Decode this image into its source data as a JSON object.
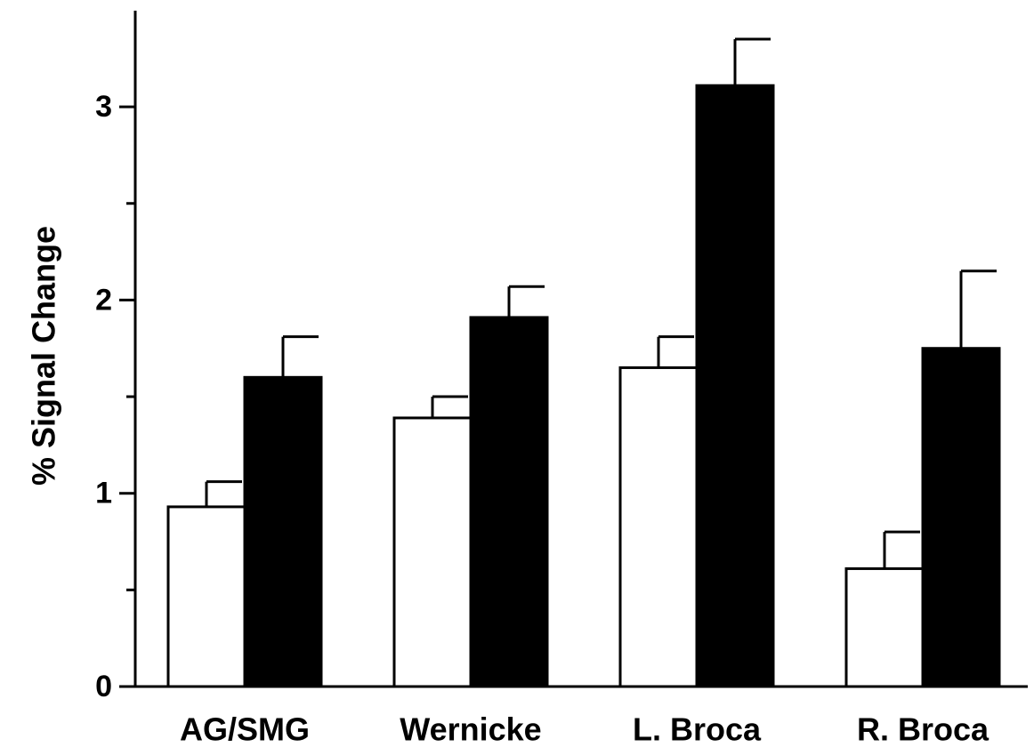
{
  "chart_data": {
    "type": "bar",
    "title": "",
    "xlabel": "",
    "ylabel": "% Signal Change",
    "ylim": [
      0,
      3.5
    ],
    "yticks": [
      0,
      1,
      2,
      3
    ],
    "yticks_minor": [
      0.5,
      1.5,
      2.5
    ],
    "grid": false,
    "legend": "none",
    "categories": [
      "AG/SMG",
      "Wernicke",
      "L. Broca",
      "R. Broca"
    ],
    "series": [
      {
        "color": "#ffffff",
        "values": [
          0.93,
          1.39,
          1.65,
          0.61
        ],
        "error": [
          0.13,
          0.11,
          0.16,
          0.19
        ]
      },
      {
        "color": "#000000",
        "values": [
          1.6,
          1.91,
          3.11,
          1.75
        ],
        "error": [
          0.21,
          0.16,
          0.24,
          0.4
        ]
      }
    ]
  }
}
